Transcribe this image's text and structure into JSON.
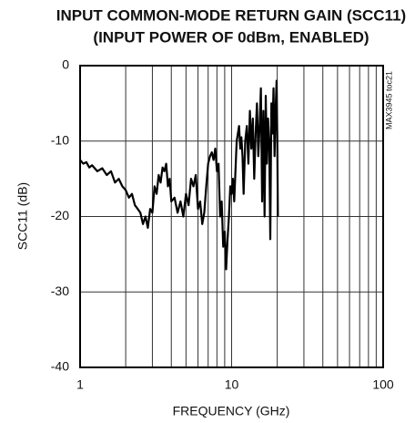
{
  "chart_data": {
    "type": "line",
    "title": "INPUT COMMON-MODE RETURN GAIN (SCC11)",
    "subtitle": "(INPUT POWER OF 0dBm, ENABLED)",
    "x_label": "FREQUENCY (GHz)",
    "y_label": "SCC11 (dB)",
    "annotation": "MAX3945 toc21",
    "x_scale": "log",
    "xlim": [
      1,
      100
    ],
    "xticks": [
      1,
      10,
      100
    ],
    "ylim": [
      -40,
      0
    ],
    "yticks": [
      0,
      -10,
      -20,
      -30,
      -40
    ],
    "grid": true,
    "series": [
      {
        "name": "SCC11",
        "color": "#000000",
        "x": [
          1,
          1.05,
          1.1,
          1.15,
          1.2,
          1.3,
          1.4,
          1.5,
          1.6,
          1.7,
          1.8,
          1.9,
          2,
          2.1,
          2.2,
          2.3,
          2.4,
          2.5,
          2.6,
          2.7,
          2.8,
          2.9,
          3,
          3.1,
          3.2,
          3.3,
          3.4,
          3.5,
          3.6,
          3.7,
          3.8,
          3.9,
          4,
          4.2,
          4.4,
          4.6,
          4.8,
          5,
          5.2,
          5.4,
          5.6,
          5.8,
          6,
          6.2,
          6.4,
          6.6,
          6.8,
          7,
          7.2,
          7.4,
          7.6,
          7.8,
          8,
          8.2,
          8.4,
          8.6,
          8.8,
          9,
          9.2,
          9.4,
          9.6,
          9.8,
          10,
          10.2,
          10.4,
          10.6,
          10.8,
          11,
          11.2,
          11.4,
          11.6,
          11.8,
          12,
          12.3,
          12.6,
          12.9,
          13.2,
          13.5,
          13.8,
          14.1,
          14.4,
          14.7,
          15,
          15.3,
          15.6,
          15.9,
          16.2,
          16.5,
          16.8,
          17.1,
          17.4,
          17.7,
          18,
          18.3,
          18.6,
          18.9,
          19.2,
          19.5,
          19.8,
          20,
          20.2
        ],
        "values": [
          -12.5,
          -13,
          -12.8,
          -13.5,
          -13.2,
          -14,
          -13.6,
          -14.5,
          -14,
          -15.5,
          -15,
          -16,
          -16.5,
          -17.5,
          -17,
          -18.5,
          -19,
          -19.5,
          -21,
          -20,
          -21.5,
          -19,
          -19.5,
          -16,
          -17,
          -14.5,
          -15.5,
          -13.5,
          -14,
          -13,
          -16,
          -15,
          -18,
          -17.5,
          -19.5,
          -18,
          -20,
          -17,
          -18.5,
          -15,
          -16,
          -14.5,
          -19,
          -18,
          -21,
          -19.5,
          -16,
          -13,
          -12,
          -11.5,
          -12.5,
          -11,
          -14,
          -13,
          -20,
          -18,
          -24,
          -22,
          -27,
          -23,
          -20,
          -16,
          -17,
          -15,
          -18,
          -14,
          -10,
          -9,
          -8,
          -11,
          -9.5,
          -12,
          -17,
          -10,
          -8,
          -13,
          -6,
          -11,
          -7,
          -15,
          -9,
          -5,
          -12,
          -8,
          -3,
          -18,
          -6,
          -20,
          -4,
          -13,
          -7,
          -10,
          -23,
          -5,
          -9,
          -3,
          -12,
          -6,
          -2,
          -9,
          -20
        ]
      }
    ]
  }
}
